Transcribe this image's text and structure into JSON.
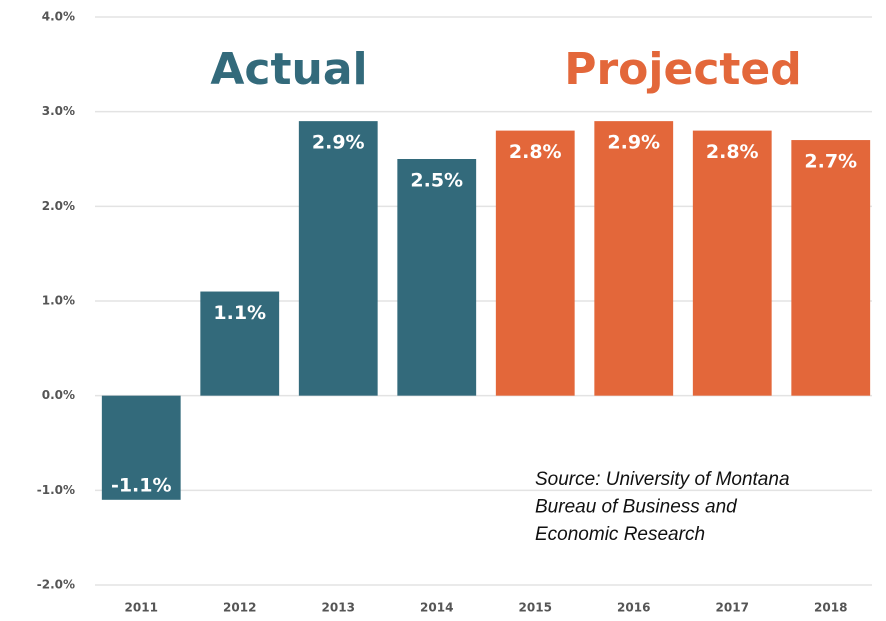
{
  "chart_data": {
    "type": "bar",
    "categories": [
      "2011",
      "2012",
      "2013",
      "2014",
      "2015",
      "2016",
      "2017",
      "2018"
    ],
    "series": [
      {
        "name": "Actual",
        "color": "#336a7b",
        "values": [
          -1.1,
          1.1,
          2.9,
          2.5,
          null,
          null,
          null,
          null
        ],
        "value_labels": [
          "-1.1%",
          "1.1%",
          "2.9%",
          "2.5%",
          null,
          null,
          null,
          null
        ]
      },
      {
        "name": "Projected",
        "color": "#e3673a",
        "values": [
          null,
          null,
          null,
          null,
          2.8,
          2.9,
          2.8,
          2.7
        ],
        "value_labels": [
          null,
          null,
          null,
          null,
          "2.8%",
          "2.9%",
          "2.8%",
          "2.7%"
        ]
      }
    ],
    "ylim": [
      -2,
      4
    ],
    "yticks": [
      {
        "value": -2,
        "label": "-2.0%"
      },
      {
        "value": -1,
        "label": "-1.0%"
      },
      {
        "value": 0,
        "label": "0.0%"
      },
      {
        "value": 1,
        "label": "1.0%"
      },
      {
        "value": 2,
        "label": "2.0%"
      },
      {
        "value": 3,
        "label": "3.0%"
      },
      {
        "value": 4,
        "label": "4.0%"
      }
    ],
    "grid": true,
    "annotations": [
      "Source: University of Montana",
      "Bureau of Business and",
      "Economic Research"
    ]
  }
}
